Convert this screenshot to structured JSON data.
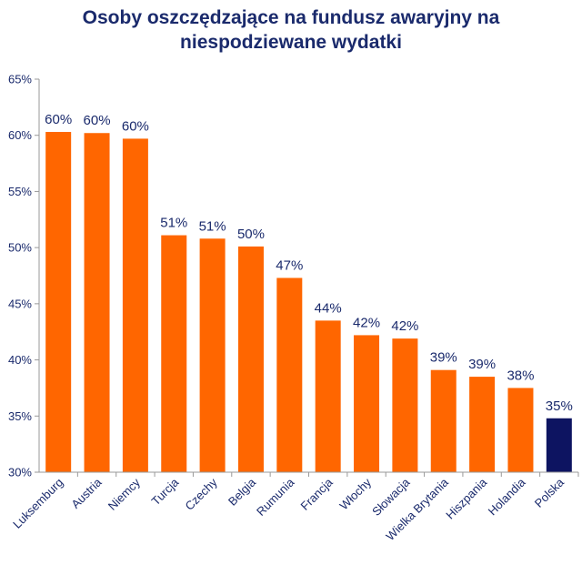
{
  "chart_data": {
    "type": "bar",
    "title_lines": [
      "Osoby oszczędzające na fundusz awaryjny na",
      "niespodziewane wydatki"
    ],
    "categories": [
      "Luksemburg",
      "Austria",
      "Niemcy",
      "Turcja",
      "Czechy",
      "Belgia",
      "Rumunia",
      "Francja",
      "Włochy",
      "Słowacja",
      "Wielka Brytania",
      "Hiszpania",
      "Holandia",
      "Polska"
    ],
    "values": [
      60.3,
      60.2,
      59.7,
      51.1,
      50.8,
      50.1,
      47.3,
      43.5,
      42.2,
      41.9,
      39.1,
      38.5,
      37.5,
      34.8
    ],
    "data_labels": [
      "60%",
      "60%",
      "60%",
      "51%",
      "51%",
      "50%",
      "47%",
      "44%",
      "42%",
      "42%",
      "39%",
      "39%",
      "38%",
      "35%"
    ],
    "ylim": [
      30,
      65
    ],
    "yticks": [
      30,
      35,
      40,
      45,
      50,
      55,
      60,
      65
    ],
    "ytick_labels": [
      "30%",
      "35%",
      "40%",
      "45%",
      "50%",
      "55%",
      "60%",
      "65%"
    ],
    "xlabel": "",
    "ylabel": "",
    "grid": false,
    "legend": false
  },
  "colors": {
    "default_bar": "#ff6600",
    "highlight_bar": "#0d1461",
    "axis": "#999999",
    "text": "#1a2a6c"
  },
  "highlight_category": "Polska"
}
